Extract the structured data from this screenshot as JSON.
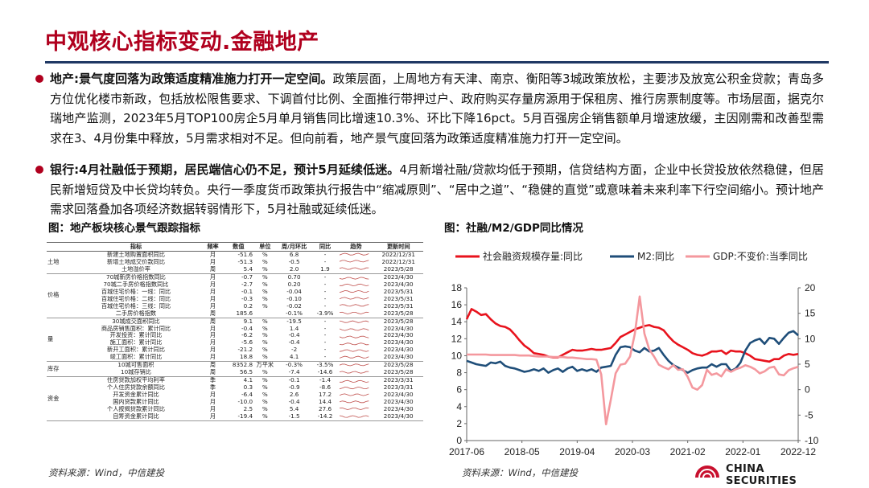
{
  "page": {
    "title": "中观核心指标变动.金融地产",
    "bullets": [
      {
        "lead": "地产:景气度回落为政策适度精准施力打开一定空间。",
        "body": "政策层面，上周地方有天津、南京、衡阳等3城政策放松，主要涉及放宽公积金贷款；青岛多方位优化楼市新政，包括放松限售要求、下调首付比例、全面推行带押过户、政府购买存量房源用于保租房、推行房票制度等。市场层面，据克尔瑞地产监测，2023年5月TOP100房企5月单月销售同比增速10.3%、环比下降16pct。5月百强房企销售额单月增速放缓，主因刚需和改善型需求在3、4月份集中释放，5月需求相对不足。但向前看，地产景气度回落为政策适度精准施力打开一定空间。"
      },
      {
        "lead": "银行:4月社融低于预期，居民端信心仍不足，预计5月延续低迷。",
        "body": "4月新增社融/贷款均低于预期，信贷结构方面，企业中长贷投放依然稳健，但居民新增短贷及中长贷均转负。央行一季度货币政策执行报告中“缩减原则”、“居中之道”、“稳健的直觉”或意味着未来利率下行空间缩小。预计地产需求回落叠加各项经济数据转弱情形下，5月社融或延续低迷。"
      }
    ],
    "fig1_caption": "图：地产板块核心景气跟踪指标",
    "fig2_caption": "图：社融/M2/GDP同比情况",
    "source_left": "资料来源：Wind，中信建投",
    "source_right": "资料来源：Wind，中信建投",
    "logo_text": "CHINA SECURITIES"
  },
  "table": {
    "headers": [
      "",
      "指标",
      "频率",
      "数值",
      "单位",
      "周/月环比",
      "同比",
      "趋势",
      "更新时间"
    ],
    "groups": [
      {
        "name": "土地",
        "rows": [
          [
            "新建土地购置面积同比",
            "月",
            "-51.6",
            "%",
            "6.8",
            "-",
            "2022/12/31"
          ],
          [
            "新增土地成交价款同比",
            "月",
            "-51.3",
            "%",
            "-0.5",
            "-",
            "2022/12/31"
          ],
          [
            "土地溢价率",
            "周",
            "5.4",
            "%",
            "2.0",
            "1.9",
            "2023/5/28"
          ]
        ]
      },
      {
        "name": "价格",
        "rows": [
          [
            "70城新房价格指数同比",
            "月",
            "-0.7",
            "%",
            "0.70",
            "-",
            "2023/4/30"
          ],
          [
            "70城二手房价格指数同比",
            "月",
            "-2.7",
            "%",
            "0.20",
            "-",
            "2023/4/30"
          ],
          [
            "百城住宅价格：一线：同比",
            "月",
            "-0.1",
            "%",
            "-0.04",
            "-",
            "2023/5/31"
          ],
          [
            "百城住宅价格：二线：同比",
            "月",
            "-0.3",
            "%",
            "-0.10",
            "-",
            "2023/5/31"
          ],
          [
            "百城住宅价格：三线：同比",
            "月",
            "0.2",
            "%",
            "-0.02",
            "-",
            "2023/5/31"
          ],
          [
            "二手房价格指数",
            "周",
            "185.6",
            "",
            "-0.1%",
            "-3.9%",
            "2023/5/28"
          ]
        ]
      },
      {
        "name": "量",
        "rows": [
          [
            "30城成交面积同比",
            "周",
            "9.1",
            "%",
            "-19.5",
            "-",
            "2023/5/28"
          ],
          [
            "商品房销售面积：累计同比",
            "月",
            "-0.4",
            "%",
            "1.4",
            "-",
            "2023/4/30"
          ],
          [
            "开发投资：累计同比",
            "月",
            "-6.2",
            "%",
            "-0.4",
            "-",
            "2023/4/30"
          ],
          [
            "施工面积：累计同比",
            "月",
            "-5.6",
            "%",
            "-0.4",
            "-",
            "2023/4/30"
          ],
          [
            "新开工面积：累计同比",
            "月",
            "-21.2",
            "%",
            "-2",
            "-",
            "2023/4/30"
          ],
          [
            "竣工面积：累计同比",
            "月",
            "18.8",
            "%",
            "4.1",
            "-",
            "2023/4/30"
          ]
        ]
      },
      {
        "name": "库存",
        "rows": [
          [
            "10城可售面积",
            "周",
            "8352.8",
            "万平米",
            "-0.3%",
            "-3.5%",
            "2023/5/28"
          ],
          [
            "10城存销比",
            "周",
            "56.5",
            "%",
            "-7.4",
            "-14.6",
            "2023/5/28"
          ]
        ]
      },
      {
        "name": "资金",
        "rows": [
          [
            "住房贷款加权平均利率",
            "季",
            "4.1",
            "%",
            "-0.1",
            "-1.4",
            "2023/3/31"
          ],
          [
            "个人住房贷款余额同比",
            "季",
            "0.3",
            "%",
            "-0.9",
            "-8.6",
            "2023/3/31"
          ],
          [
            "开发资金累计同比",
            "月",
            "-6.4",
            "%",
            "2.6",
            "17.2",
            "2023/4/30"
          ],
          [
            "国内贷款累计同比",
            "月",
            "-10.0",
            "%",
            "-0.4",
            "14.4",
            "2023/4/30"
          ],
          [
            "个人按揭贷款累计同比",
            "月",
            "2.5",
            "%",
            "5.4",
            "27.6",
            "2023/4/30"
          ],
          [
            "自筹资金累计同比",
            "月",
            "-19.4",
            "%",
            "-1.5",
            "-14.2",
            "2023/4/30"
          ]
        ]
      }
    ]
  },
  "chart_data": {
    "type": "line",
    "title": "",
    "x_ticks": [
      "2017-06",
      "2018-05",
      "2019-04",
      "2020-03",
      "2021-02",
      "2022-01",
      "2022-12"
    ],
    "ylim_left": [
      0,
      18
    ],
    "yticks_left": [
      0,
      2,
      4,
      6,
      8,
      10,
      12,
      14,
      16,
      18
    ],
    "ylim_right": [
      -10,
      20
    ],
    "yticks_right": [
      -10,
      -5,
      0,
      5,
      10,
      15,
      20
    ],
    "legend_position": "top",
    "grid": false,
    "colors": {
      "tsf": "#e8131d",
      "m2": "#1f4e79",
      "gdp": "#f4989e"
    },
    "series": [
      {
        "name": "社会融资规模存量:同比",
        "axis": "left",
        "values": [
          14.3,
          15.5,
          15.2,
          14.8,
          14.9,
          14.3,
          13.8,
          13.5,
          13.4,
          13.1,
          12.5,
          11.8,
          11.2,
          10.8,
          10.3,
          10.2,
          10.1,
          9.9,
          9.8,
          9.8,
          10.1,
          10.4,
          10.7,
          10.6,
          10.6,
          10.7,
          10.8,
          10.7,
          10.7,
          10.8,
          10.9,
          11.5,
          12.2,
          12.5,
          12.8,
          13.1,
          13.3,
          13.5,
          13.6,
          13.4,
          13.3,
          13.0,
          12.3,
          11.7,
          11.3,
          11.0,
          10.7,
          10.3,
          10.1,
          10.0,
          10.2,
          10.5,
          10.5,
          10.6,
          10.2,
          10.6,
          10.5,
          10.5,
          10.3,
          10.0,
          9.6,
          9.5,
          9.4,
          9.3,
          9.6,
          9.6,
          10.0,
          10.2,
          10.1,
          10.2
        ]
      },
      {
        "name": "M2:同比",
        "axis": "left",
        "values": [
          9.4,
          9.2,
          9.0,
          8.9,
          8.8,
          9.2,
          9.1,
          9.3,
          8.8,
          8.6,
          8.5,
          8.3,
          8.1,
          8.2,
          8.4,
          8.2,
          8.5,
          8.0,
          8.3,
          8.5,
          8.1,
          8.5,
          8.7,
          8.2,
          8.4,
          8.2,
          8.4,
          8.1,
          8.6,
          8.7,
          8.8,
          10.1,
          11.0,
          11.1,
          11.0,
          10.6,
          10.4,
          10.9,
          10.5,
          10.6,
          10.9,
          10.1,
          9.4,
          8.9,
          8.6,
          8.3,
          8.0,
          8.3,
          8.5,
          8.6,
          8.6,
          9.0,
          8.7,
          9.0,
          9.0,
          8.2,
          8.5,
          9.2,
          10.6,
          11.5,
          11.8,
          12.0,
          11.4,
          12.1,
          12.0,
          11.4,
          12.1,
          12.7,
          12.9,
          12.4
        ]
      },
      {
        "name": "GDP:不变价:当季同比",
        "axis": "right",
        "values": [
          6.9,
          6.9,
          6.9,
          6.9,
          6.9,
          6.8,
          6.8,
          6.8,
          6.8,
          6.8,
          6.8,
          6.7,
          6.7,
          6.7,
          6.6,
          6.5,
          6.5,
          6.5,
          6.4,
          6.4,
          6.4,
          6.3,
          6.3,
          6.2,
          6.1,
          6.0,
          6.0,
          5.9,
          3.0,
          -6.8,
          -2.0,
          3.2,
          4.9,
          5.1,
          6.5,
          11.0,
          18.3,
          11.0,
          7.9,
          6.5,
          4.9,
          4.4,
          4.0,
          4.8,
          3.9,
          4.0,
          2.5,
          0.4,
          0.0,
          0.9,
          3.9,
          2.9,
          3.2,
          2.6,
          4.0,
          3.5,
          4.0,
          4.3,
          4.8,
          4.5,
          4.0,
          3.2,
          3.6,
          4.3,
          4.5,
          3.0,
          2.8,
          3.8,
          4.2,
          4.5
        ]
      }
    ]
  }
}
